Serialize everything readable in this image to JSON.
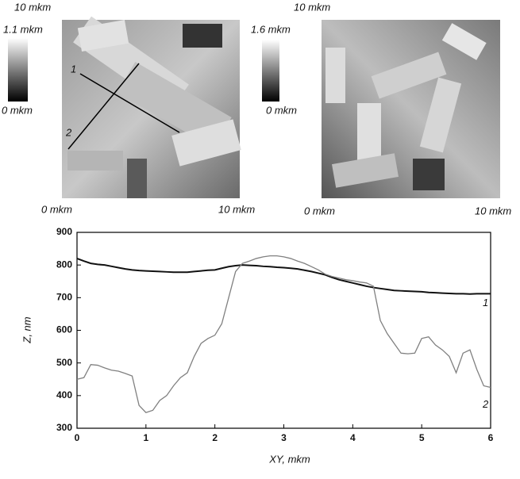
{
  "images": [
    {
      "top_label": "10 mkm",
      "scale_max": "1.1 mkm",
      "scale_min": "0 mkm",
      "x_min": "0 mkm",
      "x_max": "10 mkm",
      "profile_labels": [
        "1",
        "2"
      ]
    },
    {
      "top_label": "10 mkm",
      "scale_max": "1.6 mkm",
      "scale_min": "0 mkm",
      "x_min": "0 mkm",
      "x_max": "10 mkm"
    }
  ],
  "chart_data": {
    "type": "line",
    "xlabel": "XY, mkm",
    "ylabel": "Z, nm",
    "x": [
      0,
      0.1,
      0.2,
      0.3,
      0.4,
      0.5,
      0.6,
      0.7,
      0.8,
      0.9,
      1,
      1.1,
      1.2,
      1.3,
      1.4,
      1.5,
      1.6,
      1.7,
      1.8,
      1.9,
      2,
      2.1,
      2.2,
      2.3,
      2.4,
      2.5,
      2.6,
      2.7,
      2.8,
      2.9,
      3,
      3.1,
      3.2,
      3.3,
      3.4,
      3.5,
      3.6,
      3.7,
      3.8,
      3.9,
      4,
      4.1,
      4.2,
      4.3,
      4.4,
      4.5,
      4.6,
      4.7,
      4.8,
      4.9,
      5,
      5.1,
      5.2,
      5.3,
      5.4,
      5.5,
      5.6,
      5.7,
      5.8,
      5.9,
      6
    ],
    "series": [
      {
        "name": "1",
        "color": "#111111",
        "values": [
          820,
          812,
          805,
          802,
          800,
          796,
          792,
          788,
          785,
          783,
          782,
          781,
          780,
          779,
          778,
          778,
          778,
          780,
          782,
          784,
          785,
          790,
          795,
          798,
          800,
          799,
          798,
          796,
          795,
          793,
          792,
          790,
          788,
          784,
          780,
          775,
          770,
          762,
          755,
          750,
          745,
          740,
          735,
          731,
          728,
          725,
          722,
          721,
          720,
          719,
          718,
          716,
          715,
          714,
          713,
          712,
          712,
          711,
          712,
          712,
          712
        ]
      },
      {
        "name": "2",
        "color": "#808080",
        "values": [
          450,
          455,
          495,
          493,
          485,
          478,
          475,
          468,
          460,
          370,
          348,
          355,
          385,
          400,
          430,
          455,
          470,
          520,
          560,
          575,
          585,
          620,
          700,
          780,
          805,
          812,
          820,
          825,
          828,
          828,
          825,
          820,
          812,
          805,
          795,
          785,
          772,
          765,
          760,
          755,
          752,
          748,
          745,
          735,
          630,
          590,
          560,
          530,
          528,
          530,
          575,
          580,
          555,
          540,
          520,
          470,
          530,
          540,
          480,
          430,
          425
        ]
      }
    ],
    "xlim": [
      0,
      6
    ],
    "xticks": [
      0,
      1,
      2,
      3,
      4,
      5,
      6
    ],
    "ylim": [
      300,
      900
    ],
    "yticks": [
      300,
      400,
      500,
      600,
      700,
      800,
      900
    ]
  }
}
